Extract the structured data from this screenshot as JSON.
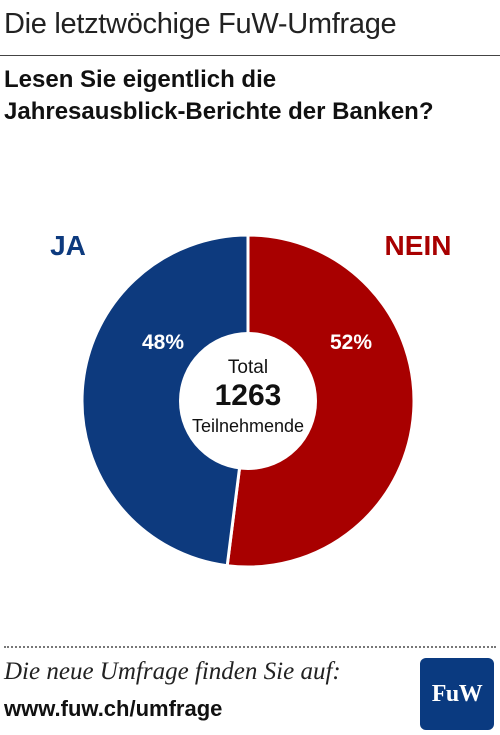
{
  "header": {
    "title": "Die letztwöchige FuW-Umfrage"
  },
  "question": {
    "line1": "Lesen Sie eigentlich die",
    "line2": "Jahresausblick-Berichte der Banken?"
  },
  "colors": {
    "ja": "#0d3a7e",
    "nein": "#a80000",
    "center": "#ffffff",
    "logo": "#0a3a80"
  },
  "chart_data": {
    "type": "pie",
    "categories": [
      "JA",
      "NEIN"
    ],
    "values": [
      48,
      52
    ],
    "value_labels": [
      "48%",
      "52%"
    ],
    "center_label": {
      "line1": "Total",
      "line2": "1263",
      "line3": "Teilnehmende"
    }
  },
  "footer": {
    "text": "Die neue Umfrage finden Sie auf:",
    "link": "www.fuw.ch/umfrage",
    "logo_text": "FuW"
  }
}
